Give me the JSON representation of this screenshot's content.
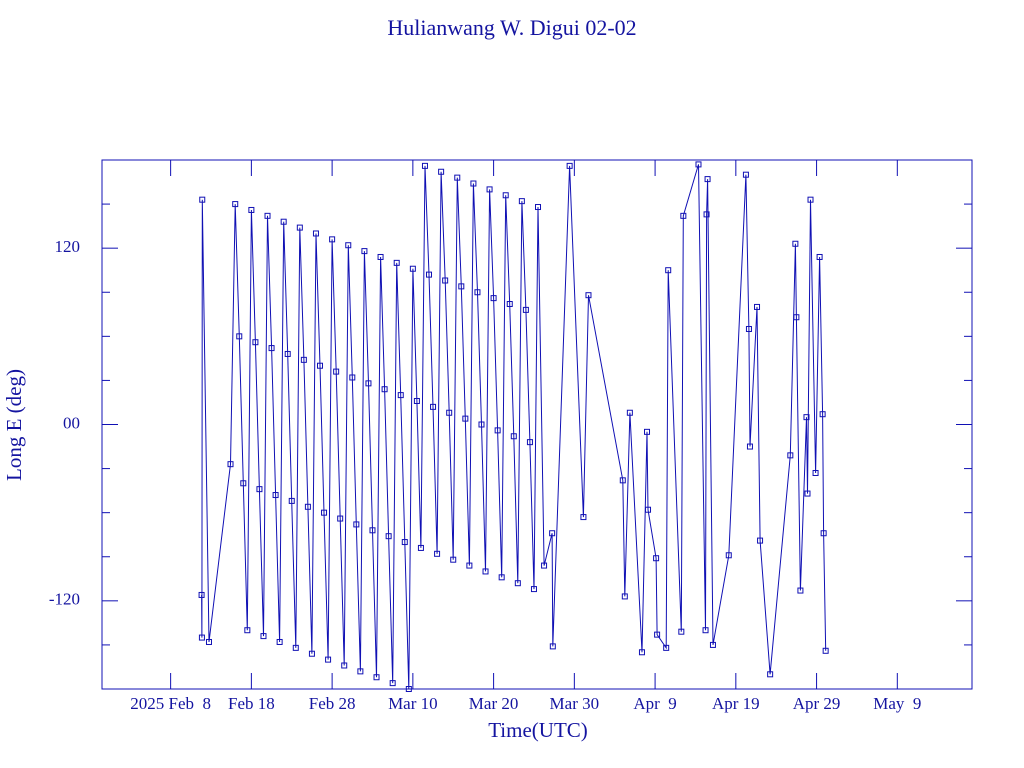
{
  "chart_data": {
    "type": "line",
    "title": "Hulianwang W. Digui 02-02",
    "xlabel": "Time(UTC)",
    "ylabel": "Long E (deg)",
    "color": "#1010b4",
    "x": [
      "2025-02-11T20:00",
      "2025-02-11T21:00",
      "2025-02-11T22:00",
      "2025-02-12T18:00",
      "2025-02-15T10:00",
      "2025-02-16T00:00",
      "2025-02-16T12:00",
      "2025-02-17T00:00",
      "2025-02-17T12:00",
      "2025-02-18T00:00",
      "2025-02-18T12:00",
      "2025-02-19T00:00",
      "2025-02-19T12:00",
      "2025-02-20T00:00",
      "2025-02-20T12:00",
      "2025-02-21T00:00",
      "2025-02-21T12:00",
      "2025-02-22T00:00",
      "2025-02-22T12:00",
      "2025-02-23T00:00",
      "2025-02-23T12:00",
      "2025-02-24T00:00",
      "2025-02-24T12:00",
      "2025-02-25T00:00",
      "2025-02-25T12:00",
      "2025-02-26T00:00",
      "2025-02-26T12:00",
      "2025-02-27T00:00",
      "2025-02-27T12:00",
      "2025-02-28T00:00",
      "2025-02-28T12:00",
      "2025-03-01T00:00",
      "2025-03-01T12:00",
      "2025-03-02T00:00",
      "2025-03-02T12:00",
      "2025-03-03T00:00",
      "2025-03-03T12:00",
      "2025-03-04T00:00",
      "2025-03-04T12:00",
      "2025-03-05T00:00",
      "2025-03-05T12:00",
      "2025-03-06T00:00",
      "2025-03-06T12:00",
      "2025-03-07T00:00",
      "2025-03-07T12:00",
      "2025-03-08T00:00",
      "2025-03-08T12:00",
      "2025-03-09T00:00",
      "2025-03-09T12:00",
      "2025-03-10T00:00",
      "2025-03-10T12:00",
      "2025-03-11T00:00",
      "2025-03-11T12:00",
      "2025-03-12T00:00",
      "2025-03-12T12:00",
      "2025-03-13T00:00",
      "2025-03-13T12:00",
      "2025-03-14T00:00",
      "2025-03-14T12:00",
      "2025-03-15T00:00",
      "2025-03-15T12:00",
      "2025-03-16T00:00",
      "2025-03-16T12:00",
      "2025-03-17T00:00",
      "2025-03-17T12:00",
      "2025-03-18T00:00",
      "2025-03-18T12:00",
      "2025-03-19T00:00",
      "2025-03-19T12:00",
      "2025-03-20T00:00",
      "2025-03-20T12:00",
      "2025-03-21T00:00",
      "2025-03-21T12:00",
      "2025-03-22T00:00",
      "2025-03-22T12:00",
      "2025-03-23T00:00",
      "2025-03-23T12:00",
      "2025-03-24T00:00",
      "2025-03-24T12:00",
      "2025-03-25T00:00",
      "2025-03-25T12:00",
      "2025-03-26T06:00",
      "2025-03-27T06:00",
      "2025-03-27T08:00",
      "2025-03-29T10:00",
      "2025-03-31T03:00",
      "2025-03-31T18:00",
      "2025-04-05T00:00",
      "2025-04-05T06:00",
      "2025-04-05T21:00",
      "2025-04-07T09:00",
      "2025-04-08T00:00",
      "2025-04-08T03:00",
      "2025-04-09T03:00",
      "2025-04-09T06:00",
      "2025-04-10T09:00",
      "2025-04-10T15:00",
      "2025-04-12T06:00",
      "2025-04-12T12:00",
      "2025-04-14T09:00",
      "2025-04-15T06:00",
      "2025-04-15T09:00",
      "2025-04-15T12:00",
      "2025-04-16T04:00",
      "2025-04-18T03:00",
      "2025-04-20T06:00",
      "2025-04-20T15:00",
      "2025-04-20T18:00",
      "2025-04-21T15:00",
      "2025-04-22T00:00",
      "2025-04-23T06:00",
      "2025-04-25T18:00",
      "2025-04-26T09:00",
      "2025-04-26T12:00",
      "2025-04-27T00:00",
      "2025-04-27T18:00",
      "2025-04-27T21:00",
      "2025-04-28T06:00",
      "2025-04-28T21:00",
      "2025-04-29T09:00",
      "2025-04-29T18:00",
      "2025-04-29T21:00",
      "2025-04-30T03:00"
    ],
    "values": [
      -116,
      -145,
      153,
      -148,
      -27,
      150,
      60,
      -40,
      -140,
      146,
      56,
      -44,
      -144,
      142,
      52,
      -48,
      -148,
      138,
      48,
      -52,
      -152,
      134,
      44,
      -56,
      -156,
      130,
      40,
      -60,
      -160,
      126,
      36,
      -64,
      -164,
      122,
      32,
      -68,
      -168,
      118,
      28,
      -72,
      -172,
      114,
      24,
      -76,
      -176,
      110,
      20,
      -80,
      -180,
      106,
      16,
      -84,
      176,
      102,
      12,
      -88,
      172,
      98,
      8,
      -92,
      168,
      94,
      4,
      -96,
      164,
      90,
      0,
      -100,
      160,
      86,
      -4,
      -104,
      156,
      82,
      -8,
      -108,
      152,
      78,
      -12,
      -112,
      148,
      -96,
      -74,
      -151,
      176,
      -63,
      88,
      -38,
      -117,
      8,
      -155,
      -5,
      -58,
      -91,
      -143,
      -152,
      105,
      -141,
      142,
      177,
      -140,
      143,
      167,
      -150,
      -89,
      170,
      65,
      -15,
      80,
      -79,
      -170,
      -21,
      123,
      73,
      -113,
      5,
      -47,
      153,
      -33,
      114,
      7,
      -74,
      -154
    ],
    "xlim": [
      "2025-01-30T12:00",
      "2025-05-18T06:00"
    ],
    "xticks": [
      {
        "value": "2025-02-08T00:00",
        "label": "2025 Feb  8"
      },
      {
        "value": "2025-02-18T00:00",
        "label": "Feb 18"
      },
      {
        "value": "2025-02-28T00:00",
        "label": "Feb 28"
      },
      {
        "value": "2025-03-10T00:00",
        "label": "Mar 10"
      },
      {
        "value": "2025-03-20T00:00",
        "label": "Mar 20"
      },
      {
        "value": "2025-03-30T00:00",
        "label": "Mar 30"
      },
      {
        "value": "2025-04-09T00:00",
        "label": "Apr  9"
      },
      {
        "value": "2025-04-19T00:00",
        "label": "Apr 19"
      },
      {
        "value": "2025-04-29T00:00",
        "label": "Apr 29"
      },
      {
        "value": "2025-05-09T00:00",
        "label": "May  9"
      }
    ],
    "ylim": [
      -180,
      180
    ],
    "yticks": [
      -120,
      {
        "value": 0,
        "label": "00"
      },
      120
    ],
    "yminor_ticks": [
      -150,
      -90,
      -60,
      -30,
      30,
      60,
      90,
      150
    ]
  }
}
